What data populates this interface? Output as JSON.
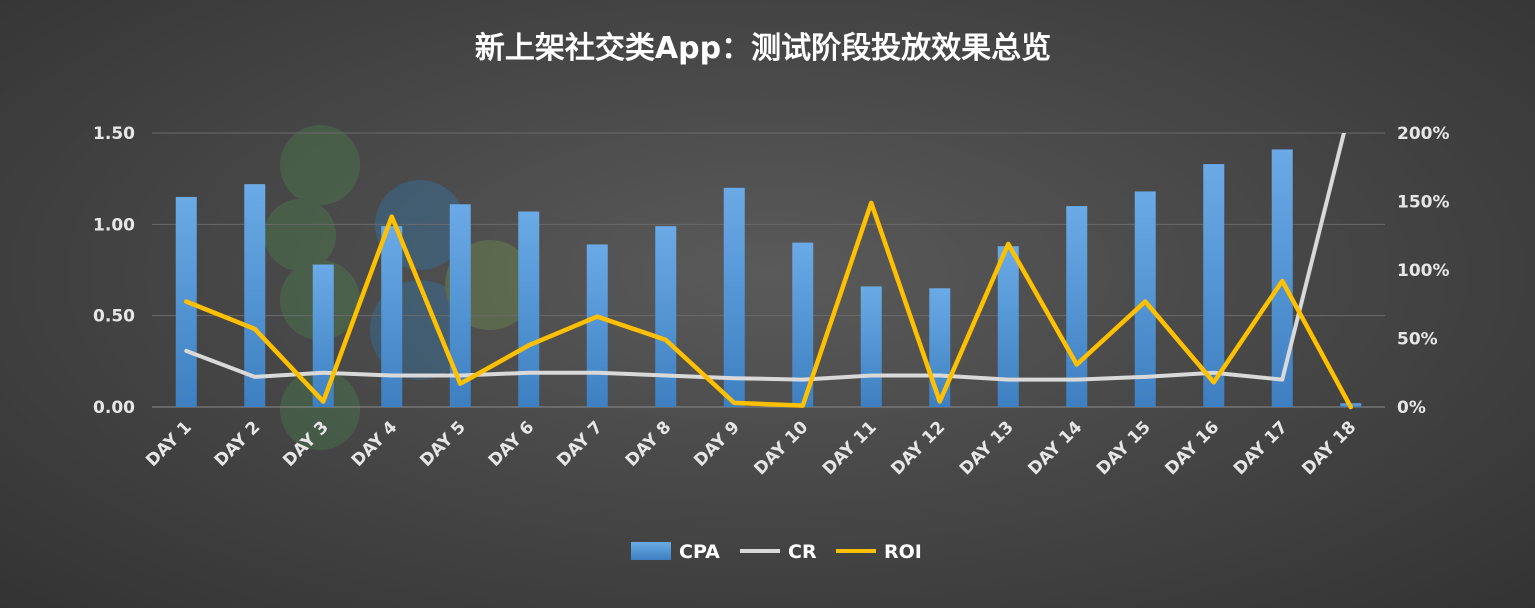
{
  "chart_data": {
    "type": "bar",
    "title": "新上架社交类App：测试阶段投放效果总览",
    "categories": [
      "DAY 1",
      "DAY 2",
      "DAY 3",
      "DAY 4",
      "DAY 5",
      "DAY 6",
      "DAY 7",
      "DAY 8",
      "DAY 9",
      "DAY 10",
      "DAY 11",
      "DAY 12",
      "DAY 13",
      "DAY 14",
      "DAY 15",
      "DAY 16",
      "DAY 17",
      "DAY 18"
    ],
    "left_axis": {
      "ylim": [
        0,
        1.5
      ],
      "ticks": [
        0,
        0.5,
        1.0,
        1.5
      ],
      "tick_labels": [
        "0.00",
        "0.50",
        "1.00",
        "1.50"
      ]
    },
    "right_axis": {
      "ylim": [
        0,
        2.0
      ],
      "ticks": [
        0,
        0.5,
        1.0,
        1.5,
        2.0
      ],
      "tick_labels": [
        "0%",
        "50%",
        "100%",
        "150%",
        "200%"
      ]
    },
    "grid": true,
    "legend_position": "bottom",
    "series": [
      {
        "name": "CPA",
        "type": "bar",
        "axis": "left",
        "color": "#5b9bd5",
        "values": [
          1.15,
          1.22,
          0.78,
          0.99,
          1.11,
          1.07,
          0.89,
          0.99,
          1.2,
          0.9,
          0.66,
          0.65,
          0.88,
          1.1,
          1.18,
          1.33,
          1.41,
          0.02
        ]
      },
      {
        "name": "CR",
        "type": "line",
        "axis": "right",
        "color": "#d9d9d9",
        "values": [
          0.41,
          0.22,
          0.25,
          0.23,
          0.23,
          0.25,
          0.25,
          0.23,
          0.21,
          0.2,
          0.23,
          0.23,
          0.2,
          0.2,
          0.22,
          0.25,
          0.2,
          2.2
        ]
      },
      {
        "name": "ROI",
        "type": "line",
        "axis": "right",
        "color": "#ffc000",
        "values": [
          0.77,
          0.57,
          0.04,
          1.39,
          0.17,
          0.45,
          0.66,
          0.49,
          0.03,
          0.01,
          1.49,
          0.04,
          1.19,
          0.31,
          0.77,
          0.18,
          0.92,
          0.0
        ]
      }
    ]
  }
}
